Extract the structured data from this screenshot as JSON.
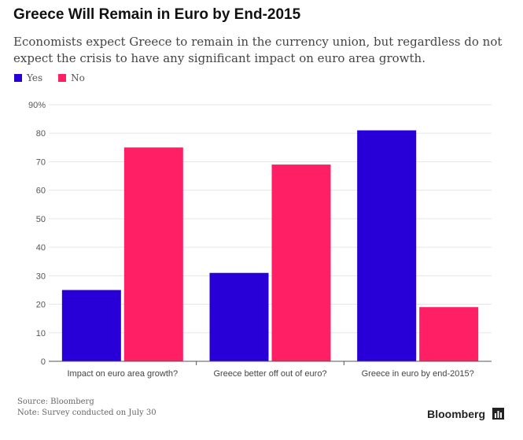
{
  "header": {
    "title": "Greece Will Remain in Euro by End-2015",
    "subtitle": "Economists expect Greece to remain in the currency union, but regardless do not expect the crisis to have any significant impact on euro area growth."
  },
  "legend": {
    "yes_label": "Yes",
    "no_label": "No"
  },
  "colors": {
    "yes": "#2800d7",
    "no": "#ff1f65",
    "grid": "#e6e6e6",
    "axis": "#555555"
  },
  "footer": {
    "source": "Source: Bloomberg",
    "note": "Note: Survey conducted on July 30",
    "brand": "Bloomberg",
    "brand_icon": "bar-chart-icon"
  },
  "chart_data": {
    "type": "bar",
    "categories": [
      "Impact on euro area growth?",
      "Greece better off out of euro?",
      "Greece in euro by end-2015?"
    ],
    "series": [
      {
        "name": "Yes",
        "values": [
          25,
          31,
          81
        ]
      },
      {
        "name": "No",
        "values": [
          75,
          69,
          19
        ]
      }
    ],
    "ylim": [
      0,
      90
    ],
    "yticks": [
      0,
      10,
      20,
      30,
      40,
      50,
      60,
      70,
      80,
      90
    ],
    "ytick_labels": [
      "0",
      "10",
      "20",
      "30",
      "40",
      "50",
      "60",
      "70",
      "80",
      "90%"
    ],
    "grid": true,
    "legend_position": "top-left"
  }
}
